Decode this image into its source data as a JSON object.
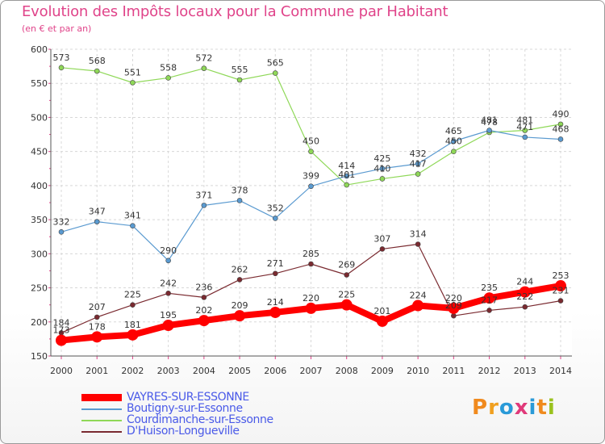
{
  "title": "Evolution des Impôts locaux pour la Commune par Habitant",
  "subtitle": "(en € et par an)",
  "logo": {
    "text": "Proxiti",
    "colors": [
      "#f08a1e",
      "#f0a020",
      "#2a9ad8",
      "#e03a7a",
      "#2a9ad8",
      "#f08a1e",
      "#9ac21e"
    ]
  },
  "chart_data": {
    "type": "line",
    "x": [
      "2000",
      "2001",
      "2002",
      "2003",
      "2004",
      "2005",
      "2006",
      "2007",
      "2008",
      "2009",
      "2010",
      "2011",
      "2012",
      "2013",
      "2014"
    ],
    "ylim": [
      150,
      600
    ],
    "yticks": [
      150,
      200,
      250,
      300,
      350,
      400,
      450,
      500,
      550,
      600
    ],
    "grid": true,
    "legend_placement": "bottom-left",
    "series": [
      {
        "name": "Courdimanche-sur-Essonne",
        "color": "#8fd858",
        "values": [
          573,
          568,
          551,
          558,
          572,
          555,
          565,
          450,
          401,
          410,
          417,
          450,
          478,
          481,
          490
        ]
      },
      {
        "name": "Boutigny-sur-Essonne",
        "color": "#5a9ad0",
        "values": [
          332,
          347,
          341,
          290,
          371,
          378,
          352,
          399,
          414,
          425,
          432,
          465,
          481,
          471,
          468
        ]
      },
      {
        "name": "D'Huison-Longueville",
        "color": "#7a2a30",
        "values": [
          184,
          207,
          225,
          242,
          236,
          262,
          271,
          285,
          269,
          307,
          314,
          209,
          217,
          222,
          231
        ]
      },
      {
        "name": "VAYRES-SUR-ESSONNE",
        "color": "#ff0000",
        "values": [
          173,
          178,
          181,
          195,
          202,
          209,
          214,
          220,
          225,
          201,
          224,
          220,
          235,
          244,
          253
        ]
      }
    ],
    "data_labels": [
      {
        "series": 0,
        "text": [
          "573",
          "568",
          "551",
          "558",
          "572",
          "555",
          "565",
          "450",
          "401",
          "410",
          "417",
          "450",
          "478",
          "481",
          "490"
        ]
      },
      {
        "series": 1,
        "text": [
          "332",
          "347",
          "341",
          "290",
          "371",
          "378",
          "352",
          "399",
          "414",
          "425",
          "432",
          "465",
          "481",
          "471",
          "468"
        ]
      },
      {
        "series": 2,
        "text": [
          "184",
          "207",
          "225",
          "242",
          "236",
          "262",
          "271",
          "285",
          "269",
          "307",
          "314",
          "209",
          "217",
          "222",
          "231"
        ]
      },
      {
        "series": 3,
        "text": [
          "173",
          "178",
          "181",
          "195",
          "202",
          "209",
          "214",
          "220",
          "225",
          "201",
          "224",
          "220",
          "235",
          "244",
          "253"
        ]
      }
    ]
  },
  "legend": [
    {
      "label": "VAYRES-SUR-ESSONNE",
      "color": "#ff0000"
    },
    {
      "label": "Boutigny-sur-Essonne",
      "color": "#5a9ad0"
    },
    {
      "label": "Courdimanche-sur-Essonne",
      "color": "#8fd858"
    },
    {
      "label": "D'Huison-Longueville",
      "color": "#7a2a30"
    }
  ]
}
